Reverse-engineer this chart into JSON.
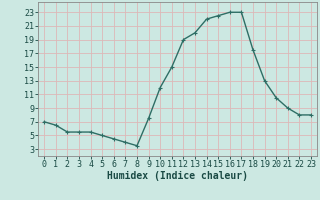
{
  "x": [
    0,
    1,
    2,
    3,
    4,
    5,
    6,
    7,
    8,
    9,
    10,
    11,
    12,
    13,
    14,
    15,
    16,
    17,
    18,
    19,
    20,
    21,
    22,
    23
  ],
  "y": [
    7,
    6.5,
    5.5,
    5.5,
    5.5,
    5.0,
    4.5,
    4.0,
    3.5,
    7.5,
    12,
    15,
    19,
    20,
    22,
    22.5,
    23,
    23,
    17.5,
    13,
    10.5,
    9,
    8,
    8
  ],
  "line_color": "#2e6e65",
  "marker_color": "#2e6e65",
  "bg_color": "#cce8e2",
  "grid_color": "#ddb8b8",
  "xlabel": "Humidex (Indice chaleur)",
  "xlim": [
    -0.5,
    23.5
  ],
  "ylim": [
    2,
    24.5
  ],
  "yticks": [
    3,
    5,
    7,
    9,
    11,
    13,
    15,
    17,
    19,
    21,
    23
  ],
  "xticks": [
    0,
    1,
    2,
    3,
    4,
    5,
    6,
    7,
    8,
    9,
    10,
    11,
    12,
    13,
    14,
    15,
    16,
    17,
    18,
    19,
    20,
    21,
    22,
    23
  ],
  "xlabel_fontsize": 7,
  "tick_fontsize": 6,
  "linewidth": 1.0,
  "markersize": 2.5
}
